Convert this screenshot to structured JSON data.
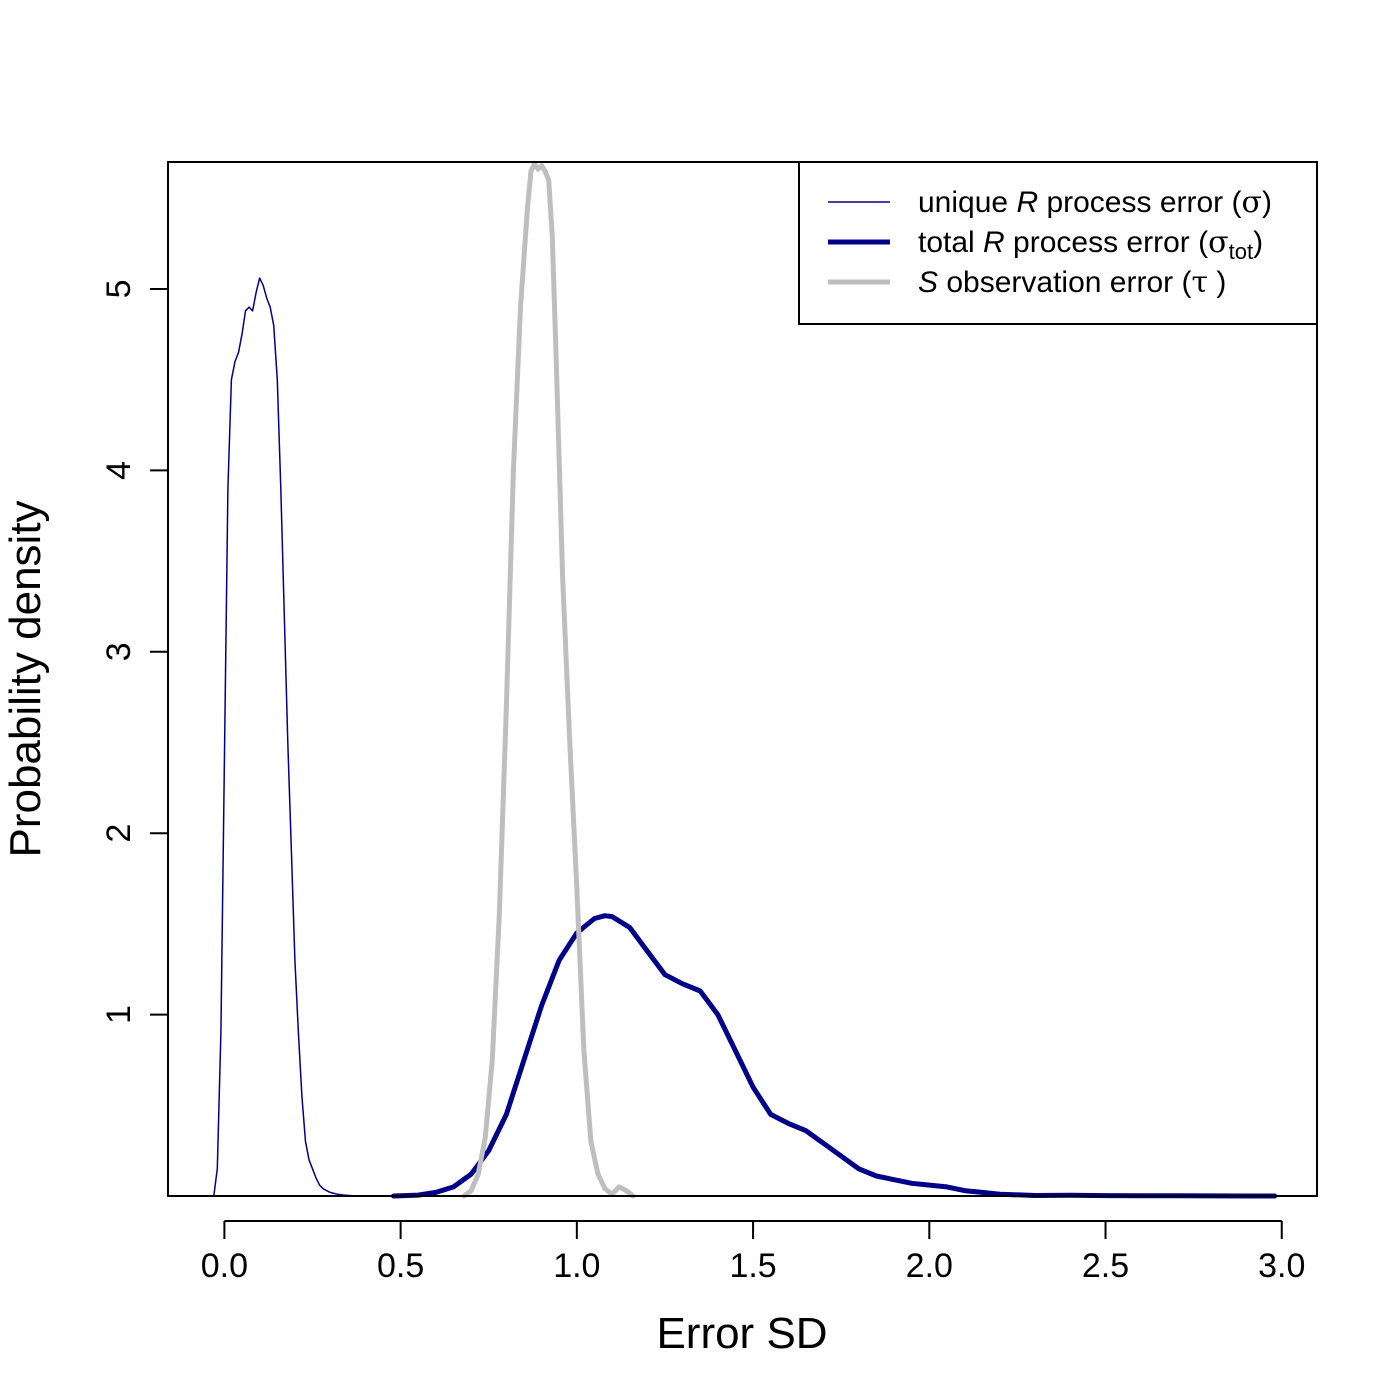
{
  "chart_data": {
    "type": "line",
    "title": "",
    "xlabel": "Error SD",
    "ylabel": "Probability density",
    "xlim": [
      -0.16,
      3.1
    ],
    "ylim": [
      0,
      5.7
    ],
    "x_ticks": [
      "0.0",
      "0.5",
      "1.0",
      "1.5",
      "2.0",
      "2.5",
      "3.0"
    ],
    "y_ticks": [
      "1",
      "2",
      "3",
      "4",
      "5"
    ],
    "grid": false,
    "legend_position": "top-right",
    "series": [
      {
        "name": "unique R process error (σ)",
        "legend": {
          "prefix": "unique ",
          "italic": "R",
          "middle": " process error (",
          "symbol": "σ",
          "sub": "",
          "suffix": ")"
        },
        "color": "#00008B",
        "line_width": 1.5,
        "x": [
          -0.03,
          -0.02,
          -0.01,
          0.0,
          0.01,
          0.02,
          0.03,
          0.04,
          0.05,
          0.06,
          0.07,
          0.08,
          0.09,
          0.1,
          0.11,
          0.12,
          0.13,
          0.14,
          0.15,
          0.16,
          0.17,
          0.18,
          0.19,
          0.2,
          0.21,
          0.22,
          0.23,
          0.24,
          0.25,
          0.26,
          0.27,
          0.28,
          0.29,
          0.3,
          0.32,
          0.34,
          0.36,
          0.38
        ],
        "y": [
          0.0,
          0.15,
          0.9,
          2.4,
          3.9,
          4.5,
          4.6,
          4.65,
          4.75,
          4.88,
          4.9,
          4.88,
          4.98,
          5.06,
          5.02,
          4.95,
          4.9,
          4.8,
          4.5,
          3.9,
          3.2,
          2.5,
          1.9,
          1.3,
          0.9,
          0.55,
          0.3,
          0.2,
          0.15,
          0.1,
          0.06,
          0.04,
          0.03,
          0.02,
          0.01,
          0.005,
          0.002,
          0.0
        ]
      },
      {
        "name": "total R process error (σtot)",
        "legend": {
          "prefix": "total ",
          "italic": "R",
          "middle": " process error (",
          "symbol": "σ",
          "sub": "tot",
          "suffix": ")"
        },
        "color": "#00008B",
        "line_width": 5,
        "x": [
          0.48,
          0.55,
          0.6,
          0.65,
          0.7,
          0.75,
          0.8,
          0.85,
          0.9,
          0.95,
          1.0,
          1.05,
          1.08,
          1.1,
          1.15,
          1.2,
          1.25,
          1.3,
          1.35,
          1.4,
          1.45,
          1.5,
          1.55,
          1.6,
          1.65,
          1.7,
          1.75,
          1.8,
          1.85,
          1.9,
          1.95,
          2.0,
          2.05,
          2.1,
          2.15,
          2.2,
          2.3,
          2.4,
          2.5,
          2.6,
          2.7,
          2.8,
          2.9,
          2.98
        ],
        "y": [
          0.0,
          0.005,
          0.02,
          0.05,
          0.12,
          0.25,
          0.45,
          0.75,
          1.05,
          1.3,
          1.45,
          1.53,
          1.545,
          1.54,
          1.48,
          1.35,
          1.22,
          1.17,
          1.13,
          1.0,
          0.8,
          0.6,
          0.45,
          0.4,
          0.36,
          0.29,
          0.22,
          0.15,
          0.11,
          0.09,
          0.07,
          0.06,
          0.05,
          0.03,
          0.02,
          0.01,
          0.003,
          0.004,
          0.002,
          0.001,
          0.001,
          0.0005,
          0.0002,
          0.0
        ]
      },
      {
        "name": "S observation error (τ )",
        "legend": {
          "prefix": "",
          "italic": "S",
          "middle": " observation error (",
          "symbol": "τ",
          "sub": "",
          "suffix": " )"
        },
        "color": "#BEBEBE",
        "line_width": 5,
        "x": [
          0.68,
          0.7,
          0.72,
          0.74,
          0.76,
          0.78,
          0.8,
          0.82,
          0.84,
          0.86,
          0.87,
          0.88,
          0.89,
          0.9,
          0.91,
          0.92,
          0.93,
          0.94,
          0.96,
          0.98,
          1.0,
          1.02,
          1.04,
          1.06,
          1.08,
          1.1,
          1.12,
          1.14,
          1.16
        ],
        "y": [
          0.0,
          0.03,
          0.12,
          0.32,
          0.75,
          1.55,
          2.7,
          4.0,
          4.9,
          5.45,
          5.65,
          5.69,
          5.66,
          5.68,
          5.65,
          5.6,
          5.3,
          4.7,
          3.4,
          2.5,
          1.7,
          0.8,
          0.3,
          0.12,
          0.04,
          0.01,
          0.05,
          0.03,
          0.0
        ]
      }
    ]
  }
}
